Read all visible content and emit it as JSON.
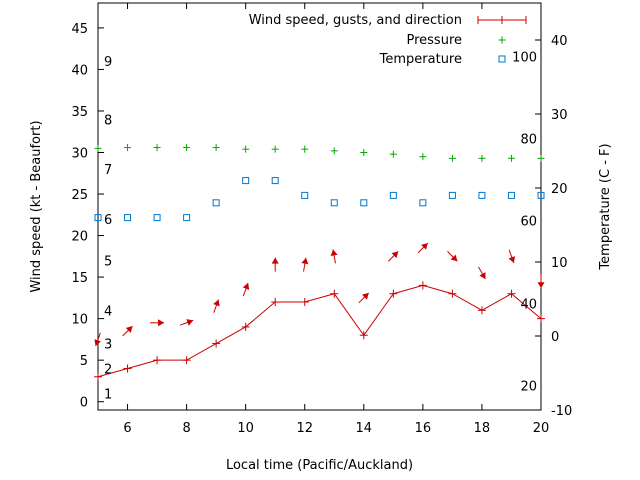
{
  "chart_data": {
    "type": "line",
    "xlabel": "Local time (Pacific/Auckland)",
    "ylabel_left": "Wind speed (kt - Beaufort)",
    "ylabel_right": "Temperature (C - F)",
    "x_range": [
      5,
      20
    ],
    "y_left_range": [
      -1,
      48
    ],
    "y_right_range": [
      -10,
      45
    ],
    "x_ticks": [
      6,
      8,
      10,
      12,
      14,
      16,
      18,
      20
    ],
    "x_tick_labels": [
      "6",
      "8",
      "10",
      "12",
      "14",
      "16",
      "18",
      "20"
    ],
    "y_left_ticks": [
      0,
      5,
      10,
      15,
      20,
      25,
      30,
      35,
      40,
      45
    ],
    "y_left_tick_labels": [
      "0",
      "5",
      "10",
      "15",
      "20",
      "25",
      "30",
      "35",
      "40",
      "45"
    ],
    "y_right_ticks": [
      -10,
      0,
      10,
      20,
      30,
      40
    ],
    "y_right_tick_labels": [
      "-10",
      "0",
      "10",
      "20",
      "30",
      "40"
    ],
    "beaufort_scale": [
      {
        "label": "1",
        "kt": 1
      },
      {
        "label": "2",
        "kt": 4
      },
      {
        "label": "3",
        "kt": 7
      },
      {
        "label": "4",
        "kt": 11
      },
      {
        "label": "5",
        "kt": 17
      },
      {
        "label": "6",
        "kt": 22
      },
      {
        "label": "7",
        "kt": 28
      },
      {
        "label": "8",
        "kt": 34
      },
      {
        "label": "9",
        "kt": 41
      }
    ],
    "fahrenheit_scale": [
      {
        "label": "20",
        "celsius": -6.7
      },
      {
        "label": "40",
        "celsius": 4.4
      },
      {
        "label": "60",
        "celsius": 15.6
      },
      {
        "label": "80",
        "celsius": 26.7
      },
      {
        "label": "100",
        "celsius": 37.8
      }
    ],
    "series": [
      {
        "name": "Wind speed, gusts, and direction",
        "color": "#cc0000",
        "axis": "left",
        "x": [
          5,
          6,
          7,
          8,
          9,
          10,
          11,
          12,
          13,
          14,
          15,
          16,
          17,
          18,
          19,
          20
        ],
        "values": [
          3,
          4,
          5,
          5,
          7,
          9,
          12,
          12,
          13,
          8,
          13,
          14,
          13,
          11,
          13,
          10
        ],
        "direction_deg": [
          20,
          225,
          270,
          250,
          200,
          200,
          180,
          190,
          170,
          225,
          225,
          225,
          315,
          330,
          340,
          0
        ]
      },
      {
        "name": "Pressure",
        "color": "#00aa00",
        "axis": "left",
        "x": [
          5,
          6,
          7,
          8,
          9,
          10,
          11,
          12,
          13,
          14,
          15,
          16,
          17,
          18,
          19,
          20
        ],
        "values": [
          30.5,
          30.6,
          30.6,
          30.6,
          30.6,
          30.4,
          30.4,
          30.4,
          30.2,
          30.0,
          29.8,
          29.5,
          29.3,
          29.3,
          29.3,
          29.3
        ]
      },
      {
        "name": "Temperature",
        "color": "#0077cc",
        "axis": "right",
        "x": [
          5,
          6,
          7,
          8,
          9,
          10,
          11,
          12,
          13,
          14,
          15,
          16,
          17,
          18,
          19,
          20
        ],
        "values": [
          16,
          16,
          16,
          16,
          18,
          21,
          21,
          19,
          18,
          18,
          19,
          18,
          19,
          19,
          19,
          19
        ]
      }
    ]
  }
}
